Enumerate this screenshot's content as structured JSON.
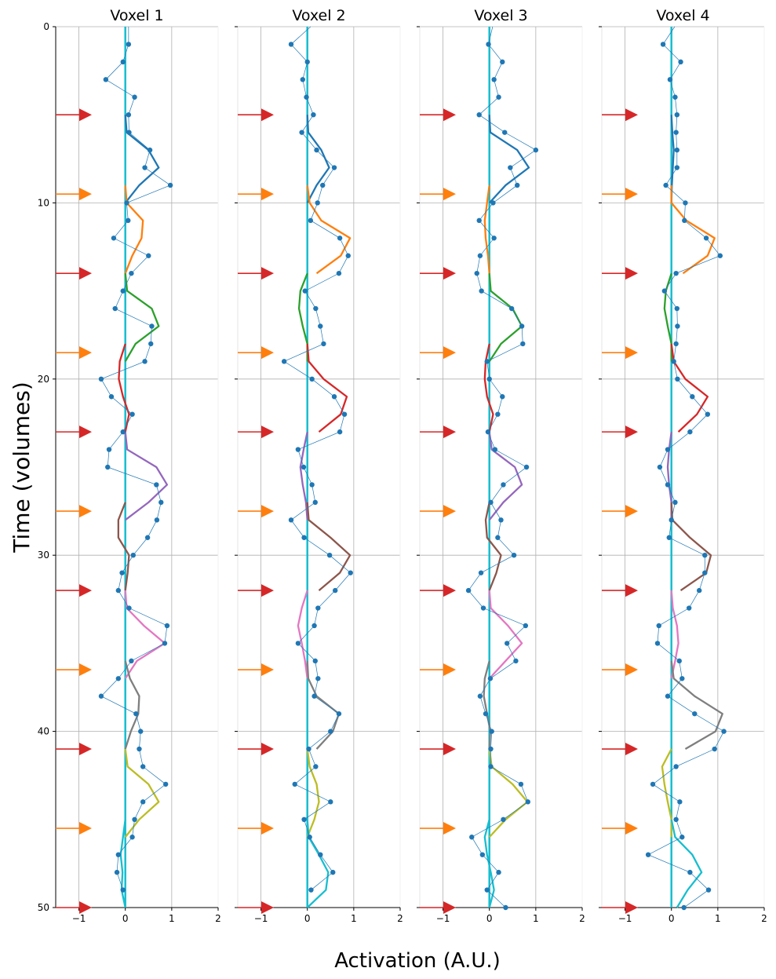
{
  "figure": {
    "ylabel": "Time (volumes)",
    "xlabel": "Activation (A.U.)"
  },
  "colors": {
    "observed": "#1f77b4",
    "stim_red": "#d62728",
    "stim_orange": "#ff7f0e",
    "baseline": "#17becf",
    "trial_palette": [
      "#1f77b4",
      "#ff7f0e",
      "#2ca02c",
      "#d62728",
      "#9467bd",
      "#8c564b",
      "#e377c2",
      "#7f7f7f",
      "#bcbd22",
      "#17becf"
    ],
    "grid": "#b0b0b0"
  },
  "chart_data": [
    {
      "type": "line",
      "title": "Voxel 1",
      "xlim": [
        -1.5,
        2
      ],
      "ylim": [
        50,
        0
      ],
      "x_ticks": [
        "−1",
        "0",
        "1",
        "2"
      ],
      "y_ticks": [
        "0",
        "10",
        "20",
        "30",
        "40",
        "50"
      ],
      "grid": true,
      "stim_onsets": [
        {
          "time": 5,
          "type": "red"
        },
        {
          "time": 9.5,
          "type": "orange"
        },
        {
          "time": 14,
          "type": "red"
        },
        {
          "time": 18.5,
          "type": "orange"
        },
        {
          "time": 23,
          "type": "red"
        },
        {
          "time": 27.5,
          "type": "orange"
        },
        {
          "time": 32,
          "type": "red"
        },
        {
          "time": 36.5,
          "type": "orange"
        },
        {
          "time": 41,
          "type": "red"
        },
        {
          "time": 45.5,
          "type": "orange"
        },
        {
          "time": 50,
          "type": "red"
        }
      ],
      "observed": [
        0.07,
        -0.05,
        -0.42,
        0.2,
        0.07,
        0.08,
        0.53,
        0.42,
        0.97,
        0.03,
        0.06,
        -0.25,
        0.5,
        0.13,
        -0.05,
        -0.22,
        0.57,
        0.55,
        0.42,
        -0.52,
        -0.3,
        0.15,
        -0.05,
        -0.35,
        -0.38,
        0.67,
        0.77,
        0.68,
        0.48,
        0.17,
        -0.07,
        -0.15,
        0.08,
        0.9,
        0.85,
        0.13,
        -0.15,
        -0.52,
        0.23,
        0.33,
        0.3,
        0.38,
        0.87,
        0.38,
        0.2,
        0.15,
        -0.15,
        -0.18,
        -0.05
      ],
      "trials": [
        {
          "start": 6,
          "values": [
            0.03,
            0.5,
            0.72,
            0.3,
            0
          ]
        },
        {
          "start": 10,
          "values": [
            0.03,
            0.38,
            0.35,
            0.15,
            0
          ]
        },
        {
          "start": 15,
          "values": [
            0.04,
            0.57,
            0.72,
            0.22,
            0
          ]
        },
        {
          "start": 19,
          "values": [
            -0.12,
            -0.14,
            -0.05,
            0.08,
            0
          ]
        },
        {
          "start": 24,
          "values": [
            0.04,
            0.67,
            0.9,
            0.5,
            0
          ]
        },
        {
          "start": 28,
          "values": [
            -0.15,
            -0.15,
            0.08,
            0.05,
            0
          ]
        },
        {
          "start": 33,
          "values": [
            0.03,
            0.4,
            0.85,
            0.25,
            0
          ]
        },
        {
          "start": 37,
          "values": [
            0.1,
            0.3,
            0.28,
            0.12,
            0
          ]
        },
        {
          "start": 42,
          "values": [
            0.05,
            0.5,
            0.72,
            0.3,
            0
          ]
        },
        {
          "start": 46,
          "values": [
            -0.05,
            -0.1,
            -0.06,
            -0.08,
            0
          ]
        }
      ]
    },
    {
      "type": "line",
      "title": "Voxel 2",
      "xlim": [
        -1.5,
        2
      ],
      "ylim": [
        50,
        0
      ],
      "x_ticks": [
        "−1",
        "0",
        "1",
        "2"
      ],
      "y_ticks": [
        "0",
        "10",
        "20",
        "30",
        "40",
        "50"
      ],
      "grid": true,
      "stim_onsets": [
        {
          "time": 5,
          "type": "red"
        },
        {
          "time": 9.5,
          "type": "orange"
        },
        {
          "time": 14,
          "type": "red"
        },
        {
          "time": 18.5,
          "type": "orange"
        },
        {
          "time": 23,
          "type": "red"
        },
        {
          "time": 27.5,
          "type": "orange"
        },
        {
          "time": 32,
          "type": "red"
        },
        {
          "time": 36.5,
          "type": "orange"
        },
        {
          "time": 41,
          "type": "red"
        },
        {
          "time": 45.5,
          "type": "orange"
        },
        {
          "time": 50,
          "type": "red"
        }
      ],
      "observed": [
        -0.35,
        0,
        -0.1,
        -0.02,
        0.13,
        -0.12,
        0.2,
        0.58,
        0.33,
        0.22,
        0.07,
        0.7,
        0.88,
        0.68,
        -0.05,
        0.18,
        0.28,
        0.35,
        -0.5,
        0.1,
        0.58,
        0.8,
        0.7,
        -0.2,
        -0.08,
        0.1,
        0.17,
        -0.35,
        -0.07,
        0.48,
        0.93,
        0.6,
        0.23,
        0.15,
        -0.2,
        0.17,
        0.23,
        0.15,
        0.68,
        0.5,
        0.03,
        0.18,
        -0.27,
        0.5,
        -0.07,
        0.05,
        0.28,
        0.55,
        0.08
      ],
      "trials": [
        {
          "start": 6,
          "values": [
            0.02,
            0.3,
            0.47,
            0.2,
            0
          ]
        },
        {
          "start": 10,
          "values": [
            0.05,
            0.3,
            0.92,
            0.72,
            0.2
          ]
        },
        {
          "start": 15,
          "values": [
            -0.15,
            -0.18,
            -0.1,
            0,
            0
          ]
        },
        {
          "start": 19,
          "values": [
            0.03,
            0.35,
            0.85,
            0.72,
            0.25
          ]
        },
        {
          "start": 24,
          "values": [
            -0.08,
            -0.15,
            -0.1,
            -0.03,
            0
          ]
        },
        {
          "start": 28,
          "values": [
            0.03,
            0.5,
            0.92,
            0.7,
            0.25
          ]
        },
        {
          "start": 33,
          "values": [
            -0.12,
            -0.2,
            -0.12,
            -0.05,
            0
          ]
        },
        {
          "start": 37,
          "values": [
            0.02,
            0.2,
            0.68,
            0.55,
            0.2
          ]
        },
        {
          "start": 42,
          "values": [
            0.05,
            0.2,
            0.25,
            0.15,
            0
          ]
        },
        {
          "start": 46,
          "values": [
            0.03,
            0.25,
            0.45,
            0.4,
            0
          ]
        }
      ]
    },
    {
      "type": "line",
      "title": "Voxel 3",
      "xlim": [
        -1.5,
        2
      ],
      "ylim": [
        50,
        0
      ],
      "x_ticks": [
        "−1",
        "0",
        "1",
        "2"
      ],
      "y_ticks": [
        "0",
        "10",
        "20",
        "30",
        "40",
        "50"
      ],
      "grid": true,
      "stim_onsets": [
        {
          "time": 5,
          "type": "red"
        },
        {
          "time": 9.5,
          "type": "orange"
        },
        {
          "time": 14,
          "type": "red"
        },
        {
          "time": 18.5,
          "type": "orange"
        },
        {
          "time": 23,
          "type": "red"
        },
        {
          "time": 27.5,
          "type": "orange"
        },
        {
          "time": 32,
          "type": "red"
        },
        {
          "time": 36.5,
          "type": "orange"
        },
        {
          "time": 41,
          "type": "red"
        },
        {
          "time": 45.5,
          "type": "orange"
        },
        {
          "time": 50,
          "type": "red"
        }
      ],
      "observed": [
        -0.02,
        0.28,
        0.1,
        0.2,
        -0.22,
        0.33,
        1.0,
        0.45,
        0.6,
        0.08,
        -0.22,
        0.1,
        -0.2,
        -0.27,
        -0.17,
        0.48,
        0.7,
        0.72,
        -0.05,
        0.0,
        0.28,
        0.18,
        -0.03,
        0.12,
        0.8,
        0.3,
        0.03,
        0.25,
        0.18,
        0.53,
        -0.18,
        -0.45,
        -0.13,
        0.78,
        0.38,
        0.57,
        0.02,
        -0.2,
        -0.08,
        0.05,
        0.03,
        0.03,
        0.68,
        0.83,
        0.3,
        -0.38,
        -0.15,
        0.2,
        -0.05,
        0.35
      ],
      "trials": [
        {
          "start": 6,
          "values": [
            0.02,
            0.6,
            0.85,
            0.35,
            0
          ]
        },
        {
          "start": 10,
          "values": [
            -0.05,
            -0.1,
            -0.08,
            -0.03,
            0
          ]
        },
        {
          "start": 15,
          "values": [
            0.03,
            0.5,
            0.7,
            0.25,
            0
          ]
        },
        {
          "start": 19,
          "values": [
            -0.08,
            -0.1,
            -0.05,
            0.08,
            0
          ]
        },
        {
          "start": 24,
          "values": [
            0.05,
            0.55,
            0.7,
            0.3,
            0
          ]
        },
        {
          "start": 28,
          "values": [
            -0.08,
            -0.05,
            0.25,
            0.15,
            0
          ]
        },
        {
          "start": 33,
          "values": [
            0.03,
            0.4,
            0.7,
            0.35,
            0
          ]
        },
        {
          "start": 37,
          "values": [
            -0.1,
            -0.12,
            -0.05,
            0.02,
            0
          ]
        },
        {
          "start": 42,
          "values": [
            0.05,
            0.5,
            0.82,
            0.35,
            0
          ]
        },
        {
          "start": 46,
          "values": [
            -0.1,
            -0.05,
            0.03,
            0.1,
            0
          ]
        }
      ]
    },
    {
      "type": "line",
      "title": "Voxel 4",
      "xlim": [
        -1.5,
        2
      ],
      "ylim": [
        50,
        0
      ],
      "x_ticks": [
        "−1",
        "0",
        "1",
        "2"
      ],
      "y_ticks": [
        "0",
        "10",
        "20",
        "30",
        "40",
        "50"
      ],
      "grid": true,
      "stim_onsets": [
        {
          "time": 5,
          "type": "red"
        },
        {
          "time": 9.5,
          "type": "orange"
        },
        {
          "time": 14,
          "type": "red"
        },
        {
          "time": 18.5,
          "type": "orange"
        },
        {
          "time": 23,
          "type": "red"
        },
        {
          "time": 27.5,
          "type": "orange"
        },
        {
          "time": 32,
          "type": "red"
        },
        {
          "time": 36.5,
          "type": "orange"
        },
        {
          "time": 41,
          "type": "red"
        },
        {
          "time": 45.5,
          "type": "orange"
        },
        {
          "time": 50,
          "type": "red"
        }
      ],
      "observed": [
        -0.18,
        0.2,
        -0.03,
        0.08,
        0.12,
        0.1,
        0.12,
        0.12,
        -0.12,
        0.3,
        0.28,
        0.75,
        1.05,
        0.1,
        -0.15,
        0.12,
        0.13,
        0.1,
        0.05,
        0.13,
        0.45,
        0.78,
        0.4,
        -0.08,
        -0.25,
        -0.08,
        0.08,
        0.0,
        -0.05,
        0.72,
        0.72,
        0.6,
        0.38,
        -0.27,
        -0.3,
        0.17,
        0.23,
        -0.08,
        0.5,
        1.13,
        0.93,
        0.1,
        -0.4,
        0.18,
        0.1,
        0.23,
        -0.5,
        0.4,
        0.8,
        0.27
      ],
      "trials": [
        {
          "start": 6,
          "values": [
            0.02,
            0.05,
            0.03,
            0.01,
            0
          ]
        },
        {
          "start": 10,
          "values": [
            0.0,
            0.32,
            0.93,
            0.78,
            0.25
          ]
        },
        {
          "start": 15,
          "values": [
            -0.12,
            -0.15,
            -0.08,
            0,
            0
          ]
        },
        {
          "start": 19,
          "values": [
            0.05,
            0.3,
            0.78,
            0.55,
            0.15
          ]
        },
        {
          "start": 24,
          "values": [
            -0.05,
            -0.08,
            -0.05,
            0,
            0
          ]
        },
        {
          "start": 28,
          "values": [
            0.02,
            0.4,
            0.85,
            0.75,
            0.2
          ]
        },
        {
          "start": 33,
          "values": [
            0.03,
            0.12,
            0.15,
            0.08,
            0
          ]
        },
        {
          "start": 37,
          "values": [
            0.05,
            0.5,
            1.1,
            0.95,
            0.3
          ]
        },
        {
          "start": 42,
          "values": [
            -0.2,
            -0.15,
            -0.08,
            0,
            0
          ]
        },
        {
          "start": 46,
          "values": [
            0.08,
            0.45,
            0.65,
            0.35,
            0.12
          ]
        }
      ]
    }
  ]
}
